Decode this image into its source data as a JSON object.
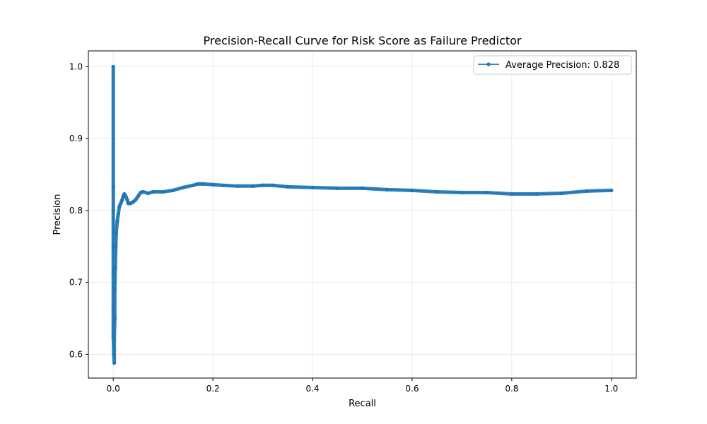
{
  "chart_data": {
    "type": "line",
    "title": "Precision-Recall Curve for Risk Score as Failure Predictor",
    "xlabel": "Recall",
    "ylabel": "Precision",
    "xlim": [
      -0.05,
      1.05
    ],
    "ylim": [
      0.567,
      1.022
    ],
    "xticks": [
      0.0,
      0.2,
      0.4,
      0.6,
      0.8,
      1.0
    ],
    "xtick_labels": [
      "0.0",
      "0.2",
      "0.4",
      "0.6",
      "0.8",
      "1.0"
    ],
    "yticks": [
      0.6,
      0.7,
      0.8,
      0.9,
      1.0
    ],
    "ytick_labels": [
      "0.6",
      "0.7",
      "0.8",
      "0.9",
      "1.0"
    ],
    "grid": true,
    "legend_position": "top-right",
    "colors": {
      "series": "#1f77b4",
      "grid": "#e6e6e6",
      "axis": "#000000"
    },
    "series": [
      {
        "name": "Average Precision: 0.828",
        "marker": "circle",
        "points": [
          [
            0.0,
            1.0
          ],
          [
            0.0,
            0.833
          ],
          [
            0.0,
            0.8
          ],
          [
            0.0,
            0.75
          ],
          [
            0.0,
            0.714
          ],
          [
            0.0,
            0.667
          ],
          [
            0.0,
            0.625
          ],
          [
            0.001,
            0.6
          ],
          [
            0.002,
            0.588
          ],
          [
            0.002,
            0.62
          ],
          [
            0.003,
            0.65
          ],
          [
            0.003,
            0.69
          ],
          [
            0.004,
            0.72
          ],
          [
            0.005,
            0.75
          ],
          [
            0.006,
            0.77
          ],
          [
            0.008,
            0.785
          ],
          [
            0.01,
            0.795
          ],
          [
            0.012,
            0.805
          ],
          [
            0.015,
            0.81
          ],
          [
            0.018,
            0.815
          ],
          [
            0.02,
            0.82
          ],
          [
            0.022,
            0.823
          ],
          [
            0.025,
            0.82
          ],
          [
            0.028,
            0.815
          ],
          [
            0.03,
            0.81
          ],
          [
            0.035,
            0.81
          ],
          [
            0.04,
            0.812
          ],
          [
            0.045,
            0.815
          ],
          [
            0.05,
            0.82
          ],
          [
            0.055,
            0.825
          ],
          [
            0.06,
            0.826
          ],
          [
            0.07,
            0.824
          ],
          [
            0.08,
            0.826
          ],
          [
            0.1,
            0.826
          ],
          [
            0.12,
            0.828
          ],
          [
            0.14,
            0.832
          ],
          [
            0.16,
            0.835
          ],
          [
            0.17,
            0.837
          ],
          [
            0.18,
            0.837
          ],
          [
            0.2,
            0.836
          ],
          [
            0.22,
            0.835
          ],
          [
            0.25,
            0.834
          ],
          [
            0.28,
            0.834
          ],
          [
            0.3,
            0.835
          ],
          [
            0.32,
            0.835
          ],
          [
            0.35,
            0.833
          ],
          [
            0.4,
            0.832
          ],
          [
            0.45,
            0.831
          ],
          [
            0.5,
            0.831
          ],
          [
            0.55,
            0.829
          ],
          [
            0.6,
            0.828
          ],
          [
            0.65,
            0.826
          ],
          [
            0.7,
            0.825
          ],
          [
            0.75,
            0.825
          ],
          [
            0.8,
            0.823
          ],
          [
            0.85,
            0.823
          ],
          [
            0.9,
            0.824
          ],
          [
            0.95,
            0.827
          ],
          [
            1.0,
            0.828
          ]
        ]
      }
    ]
  }
}
